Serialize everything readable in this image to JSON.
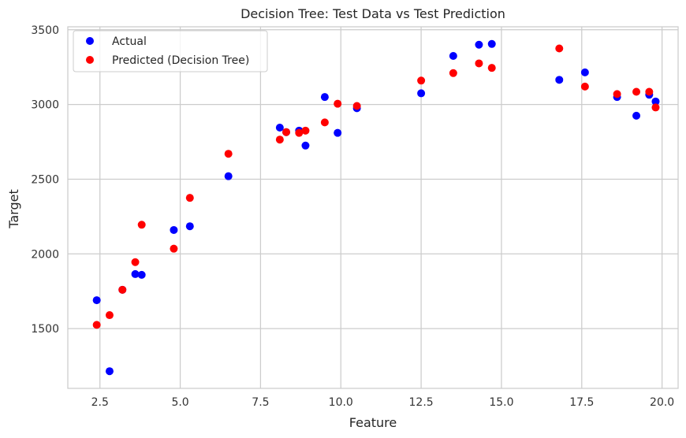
{
  "chart_data": {
    "type": "scatter",
    "title": "Decision Tree: Test Data vs Test Prediction",
    "xlabel": "Feature",
    "ylabel": "Target",
    "xlim": [
      1.5,
      20.5
    ],
    "ylim": [
      1100,
      3520
    ],
    "xticks": [
      2.5,
      5.0,
      7.5,
      10.0,
      12.5,
      15.0,
      17.5,
      20.0
    ],
    "xtick_labels": [
      "2.5",
      "5.0",
      "7.5",
      "10.0",
      "12.5",
      "15.0",
      "17.5",
      "20.0"
    ],
    "yticks": [
      1500,
      2000,
      2500,
      3000,
      3500
    ],
    "ytick_labels": [
      "1500",
      "2000",
      "2500",
      "3000",
      "3500"
    ],
    "grid": true,
    "legend_position": "top-left",
    "series": [
      {
        "name": "Actual",
        "color": "#0000ff",
        "points": [
          [
            2.4,
            1690
          ],
          [
            2.8,
            1215
          ],
          [
            3.2,
            1760
          ],
          [
            3.6,
            1865
          ],
          [
            3.8,
            1860
          ],
          [
            4.8,
            2160
          ],
          [
            5.3,
            2185
          ],
          [
            6.5,
            2520
          ],
          [
            8.1,
            2845
          ],
          [
            8.3,
            2815
          ],
          [
            8.7,
            2825
          ],
          [
            8.9,
            2725
          ],
          [
            9.5,
            3050
          ],
          [
            9.9,
            2810
          ],
          [
            10.5,
            2975
          ],
          [
            12.5,
            3075
          ],
          [
            13.5,
            3325
          ],
          [
            14.3,
            3400
          ],
          [
            14.7,
            3405
          ],
          [
            16.8,
            3165
          ],
          [
            17.6,
            3215
          ],
          [
            18.6,
            3050
          ],
          [
            19.2,
            2925
          ],
          [
            19.6,
            3065
          ],
          [
            19.8,
            3020
          ]
        ]
      },
      {
        "name": "Predicted (Decision Tree)",
        "color": "#ff0000",
        "points": [
          [
            2.4,
            1525
          ],
          [
            2.8,
            1590
          ],
          [
            3.2,
            1760
          ],
          [
            3.6,
            1945
          ],
          [
            3.8,
            2195
          ],
          [
            4.8,
            2035
          ],
          [
            5.3,
            2375
          ],
          [
            6.5,
            2670
          ],
          [
            8.1,
            2765
          ],
          [
            8.3,
            2815
          ],
          [
            8.7,
            2810
          ],
          [
            8.9,
            2825
          ],
          [
            9.5,
            2880
          ],
          [
            9.9,
            3005
          ],
          [
            10.5,
            2990
          ],
          [
            12.5,
            3160
          ],
          [
            13.5,
            3210
          ],
          [
            14.3,
            3275
          ],
          [
            14.7,
            3245
          ],
          [
            16.8,
            3375
          ],
          [
            17.6,
            3120
          ],
          [
            18.6,
            3070
          ],
          [
            19.2,
            3085
          ],
          [
            19.6,
            3085
          ],
          [
            19.8,
            2980
          ]
        ]
      }
    ]
  }
}
